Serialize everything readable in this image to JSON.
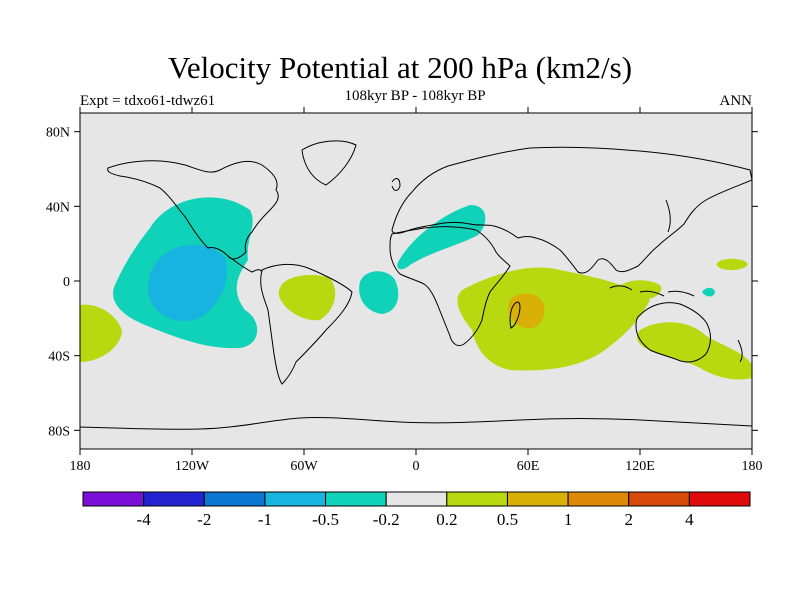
{
  "header": {
    "title": "Velocity Potential at 200 hPa (km2/s)",
    "left_label": "Expt = tdxo61-tdwz61",
    "center_label": "108kyr BP - 108kyr BP",
    "right_label": "ANN"
  },
  "chart_data": {
    "type": "map",
    "projection": "cylindrical equidistant",
    "variable": "Velocity Potential at 200 hPa",
    "units": "km2/s",
    "x_range": [
      -180,
      180
    ],
    "y_range": [
      -90,
      90
    ],
    "x_ticks": [
      {
        "value": -180,
        "label": "180"
      },
      {
        "value": -120,
        "label": "120W"
      },
      {
        "value": -60,
        "label": "60W"
      },
      {
        "value": 0,
        "label": "0"
      },
      {
        "value": 60,
        "label": "60E"
      },
      {
        "value": 120,
        "label": "120E"
      },
      {
        "value": 180,
        "label": "180"
      }
    ],
    "y_ticks": [
      {
        "value": 80,
        "label": "80N"
      },
      {
        "value": 40,
        "label": "40N"
      },
      {
        "value": 0,
        "label": "0"
      },
      {
        "value": -40,
        "label": "40S"
      },
      {
        "value": -80,
        "label": "80S"
      }
    ],
    "colorbar": {
      "colors": [
        "#7a10d8",
        "#2222d0",
        "#0a78d0",
        "#18b4e0",
        "#10d2b8",
        "#e6e6e6",
        "#b8d810",
        "#d8b008",
        "#de8a08",
        "#d84a08",
        "#e00a0a"
      ],
      "labels": [
        "-4",
        "-2",
        "-1",
        "-0.5",
        "-0.2",
        "0.2",
        "0.5",
        "1",
        "2",
        "4"
      ]
    },
    "background_color": "#e6e6e6",
    "regions": [
      {
        "name": "east-pacific-negative",
        "level": "-0.5 to -0.2",
        "color": "#10d2b8"
      },
      {
        "name": "east-pacific-core",
        "level": "-1 to -0.5",
        "color": "#18b4e0"
      },
      {
        "name": "mediterranean-negative",
        "level": "-0.5 to -0.2",
        "color": "#10d2b8"
      },
      {
        "name": "tropical-atlantic-negative",
        "level": "-0.5 to -0.2",
        "color": "#10d2b8"
      },
      {
        "name": "west-pacific-negative",
        "level": "-0.5 to -0.2",
        "color": "#10d2b8"
      },
      {
        "name": "south-america-positive",
        "level": "0.2 to 0.5",
        "color": "#b8d810"
      },
      {
        "name": "indian-ocean-positive",
        "level": "0.2 to 0.5",
        "color": "#b8d810"
      },
      {
        "name": "madagascar-core",
        "level": "0.5 to 1",
        "color": "#d8b008"
      },
      {
        "name": "australia-positive",
        "level": "0.2 to 0.5",
        "color": "#b8d810"
      },
      {
        "name": "south-pacific-positive",
        "level": "0.2 to 0.5",
        "color": "#b8d810"
      },
      {
        "name": "maritime-continent-positive",
        "level": "0.2 to 0.5",
        "color": "#b8d810"
      },
      {
        "name": "central-pacific-positive",
        "level": "0.2 to 0.5",
        "color": "#b8d810"
      }
    ]
  }
}
